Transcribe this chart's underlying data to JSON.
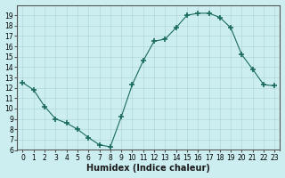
{
  "xlabel": "Humidex (Indice chaleur)",
  "ylabel": "",
  "x": [
    0,
    1,
    2,
    3,
    4,
    5,
    6,
    7,
    8,
    9,
    10,
    11,
    12,
    13,
    14,
    15,
    16,
    17,
    18,
    19,
    20,
    21,
    22,
    23
  ],
  "y": [
    12.5,
    11.8,
    10.2,
    9.0,
    8.6,
    8.0,
    7.2,
    6.5,
    6.3,
    9.2,
    12.3,
    14.6,
    16.5,
    16.7,
    17.8,
    19.0,
    19.2,
    19.2,
    18.8,
    17.8,
    15.2,
    13.8,
    12.3,
    12.2
  ],
  "line_color": "#1a6b5a",
  "marker": "+",
  "markersize": 4,
  "markeredgewidth": 1.2,
  "bg_color": "#cceef0",
  "grid_color": "#b0d8dc",
  "ylim": [
    6,
    20
  ],
  "xlim": [
    -0.5,
    23.5
  ],
  "yticks": [
    6,
    7,
    8,
    9,
    10,
    11,
    12,
    13,
    14,
    15,
    16,
    17,
    18,
    19
  ],
  "xticks": [
    0,
    1,
    2,
    3,
    4,
    5,
    6,
    7,
    8,
    9,
    10,
    11,
    12,
    13,
    14,
    15,
    16,
    17,
    18,
    19,
    20,
    21,
    22,
    23
  ],
  "tick_fontsize": 5.5,
  "label_fontsize": 7
}
